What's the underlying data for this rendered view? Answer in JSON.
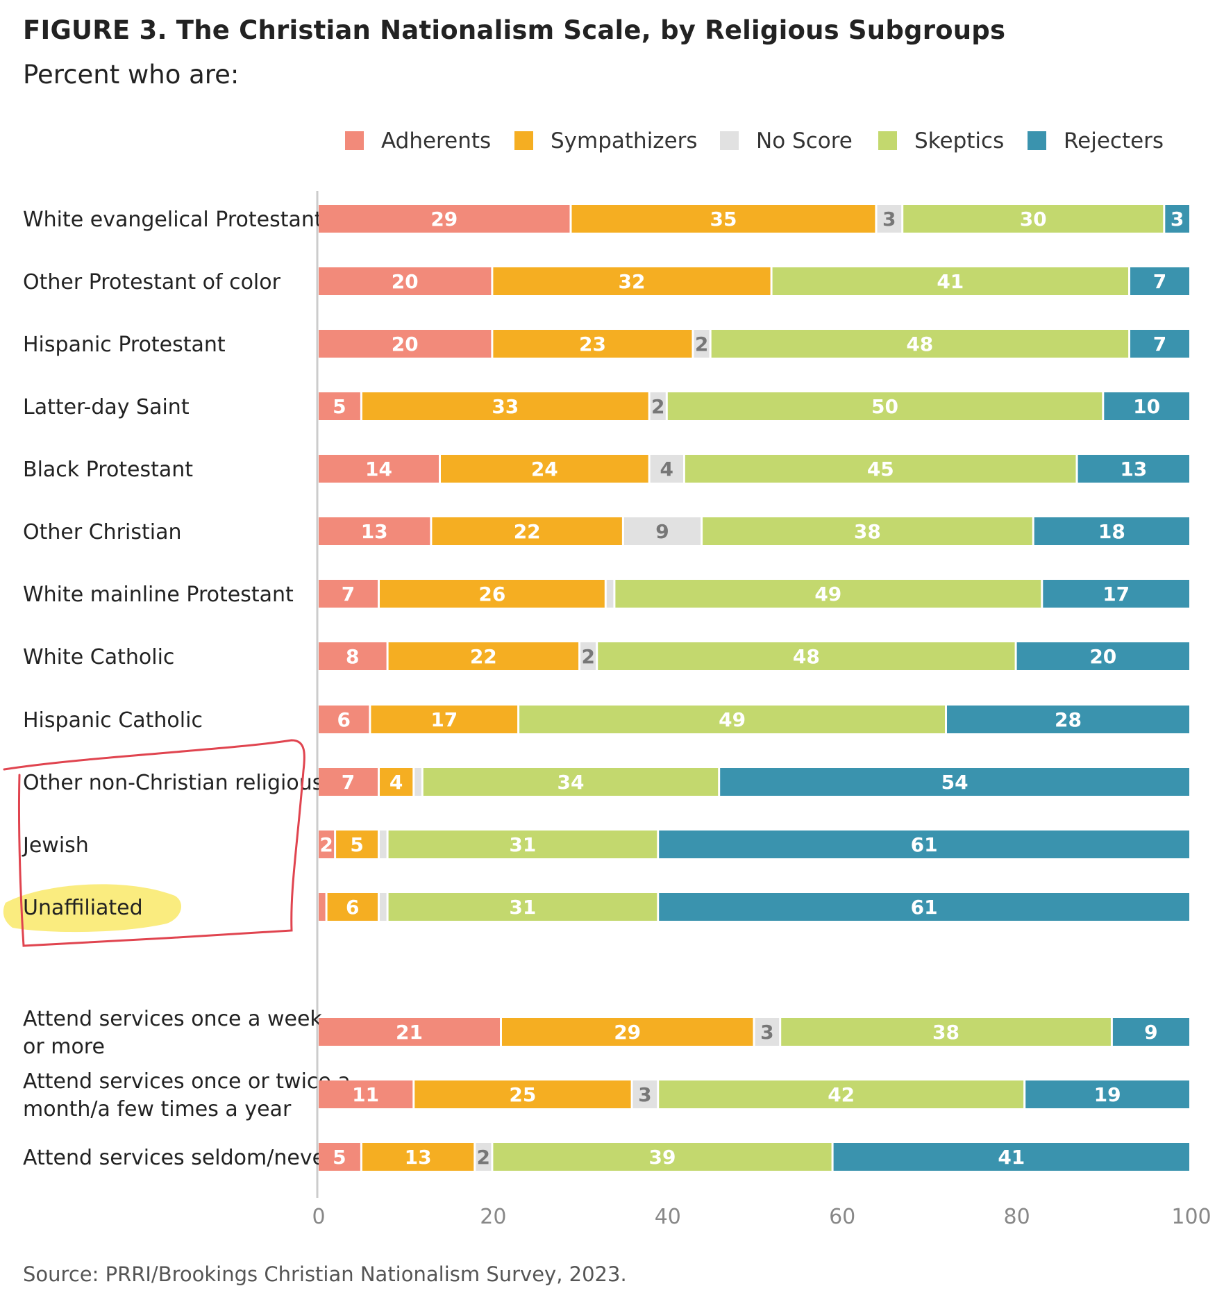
{
  "title": "FIGURE 3. The Christian Nationalism Scale, by Religious Subgroups",
  "subtitle": "Percent who are:",
  "source": "Source: PRRI/Brookings Christian Nationalism Survey, 2023.",
  "colors": {
    "Adherents": "#f28a7a",
    "Sympathizers": "#f5ae22",
    "No Score": "#e1e1e1",
    "Skeptics": "#c3d86e",
    "Rejecters": "#3a93ae"
  },
  "annotations": {
    "red_box_around": [
      "Other non-Christian religious",
      "Jewish",
      "Unaffiliated"
    ],
    "highlight": "Unaffiliated"
  },
  "chart_data": {
    "type": "bar",
    "orientation": "horizontal",
    "stacked": true,
    "xlim": [
      0,
      100
    ],
    "xticks": [
      0,
      20,
      40,
      60,
      80,
      100
    ],
    "grid": false,
    "legend_position": "top",
    "series_names": [
      "Adherents",
      "Sympathizers",
      "No Score",
      "Skeptics",
      "Rejecters"
    ],
    "categories": [
      {
        "label": [
          "White evangelical Protestant"
        ],
        "values": [
          29,
          35,
          3,
          30,
          3
        ],
        "labels": [
          "29",
          "35",
          "3",
          "30",
          "3"
        ]
      },
      {
        "label": [
          "Other Protestant of color"
        ],
        "values": [
          20,
          32,
          0,
          41,
          7
        ],
        "labels": [
          "20",
          "32",
          "",
          "41",
          "7"
        ]
      },
      {
        "label": [
          "Hispanic Protestant"
        ],
        "values": [
          20,
          23,
          2,
          48,
          7
        ],
        "labels": [
          "20",
          "23",
          "2",
          "48",
          "7"
        ]
      },
      {
        "label": [
          "Latter-day Saint"
        ],
        "values": [
          5,
          33,
          2,
          50,
          10
        ],
        "labels": [
          "5",
          "33",
          "2",
          "50",
          "10"
        ]
      },
      {
        "label": [
          "Black Protestant"
        ],
        "values": [
          14,
          24,
          4,
          45,
          13
        ],
        "labels": [
          "14",
          "24",
          "4",
          "45",
          "13"
        ]
      },
      {
        "label": [
          "Other Christian"
        ],
        "values": [
          13,
          22,
          9,
          38,
          18
        ],
        "labels": [
          "13",
          "22",
          "9",
          "38",
          "18"
        ]
      },
      {
        "label": [
          "White mainline Protestant"
        ],
        "values": [
          7,
          26,
          1,
          49,
          17
        ],
        "labels": [
          "7",
          "26",
          "",
          "49",
          "17"
        ]
      },
      {
        "label": [
          "White Catholic"
        ],
        "values": [
          8,
          22,
          2,
          48,
          20
        ],
        "labels": [
          "8",
          "22",
          "2",
          "48",
          "20"
        ]
      },
      {
        "label": [
          "Hispanic Catholic"
        ],
        "values": [
          6,
          17,
          0,
          49,
          28
        ],
        "labels": [
          "6",
          "17",
          "",
          "49",
          "28"
        ]
      },
      {
        "label": [
          "Other non-Christian religious"
        ],
        "values": [
          7,
          4,
          1,
          34,
          54
        ],
        "labels": [
          "7",
          "4",
          "",
          "34",
          "54"
        ]
      },
      {
        "label": [
          "Jewish"
        ],
        "values": [
          2,
          5,
          1,
          31,
          61
        ],
        "labels": [
          "2",
          "5",
          "",
          "31",
          "61"
        ]
      },
      {
        "label": [
          "Unaffiliated"
        ],
        "values": [
          1,
          6,
          1,
          31,
          61
        ],
        "labels": [
          "",
          "6",
          "",
          "31",
          "61"
        ]
      },
      {
        "label": [
          "Attend services once a week",
          "or more"
        ],
        "values": [
          21,
          29,
          3,
          38,
          9
        ],
        "labels": [
          "21",
          "29",
          "3",
          "38",
          "9"
        ]
      },
      {
        "label": [
          "Attend services once or twice a",
          "month/a few times a year"
        ],
        "values": [
          11,
          25,
          3,
          42,
          19
        ],
        "labels": [
          "11",
          "25",
          "3",
          "42",
          "19"
        ]
      },
      {
        "label": [
          "Attend services seldom/never"
        ],
        "values": [
          5,
          13,
          2,
          39,
          41
        ],
        "labels": [
          "5",
          "13",
          "2",
          "39",
          "41"
        ]
      }
    ]
  }
}
